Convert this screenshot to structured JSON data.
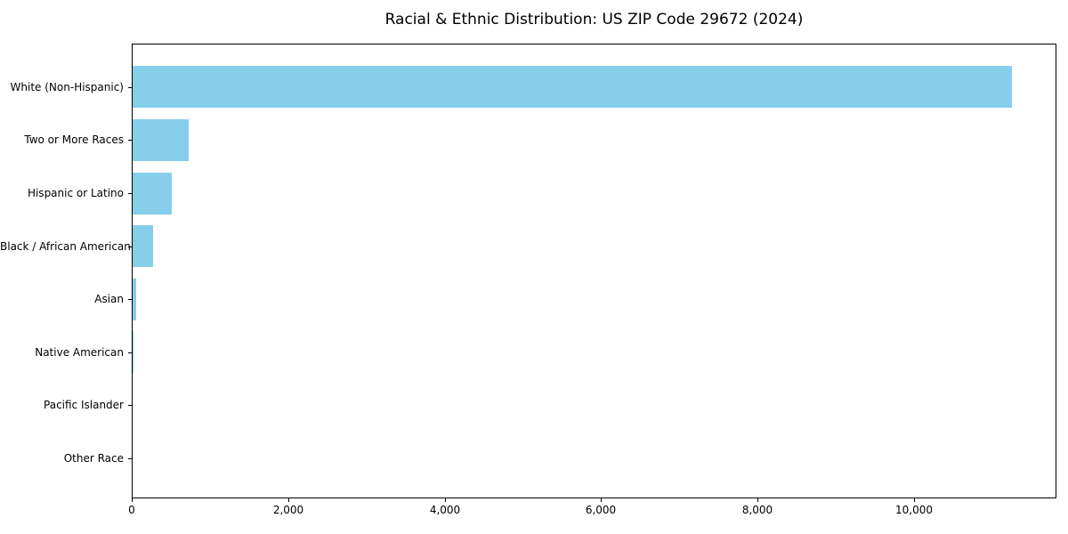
{
  "chart_data": {
    "type": "bar",
    "orientation": "horizontal",
    "title": "Racial & Ethnic Distribution: US ZIP Code 29672 (2024)",
    "categories": [
      "White (Non-Hispanic)",
      "Two or More Races",
      "Hispanic or Latino",
      "Black / African American",
      "Asian",
      "Native American",
      "Pacific Islander",
      "Other Race"
    ],
    "values": [
      11240,
      720,
      495,
      265,
      45,
      10,
      0,
      0
    ],
    "xlabel": "",
    "ylabel": "",
    "xlim": [
      0,
      11820
    ],
    "xticks": [
      0,
      2000,
      4000,
      6000,
      8000,
      10000
    ],
    "xtick_labels": [
      "0",
      "2,000",
      "4,000",
      "6,000",
      "8,000",
      "10,000"
    ],
    "bar_color": "#87CEEB",
    "axis_color": "#000000",
    "text_color": "#000000",
    "background_color": "#ffffff",
    "grid": false,
    "legend_position": "none",
    "categories_order": "largest-at-top"
  }
}
